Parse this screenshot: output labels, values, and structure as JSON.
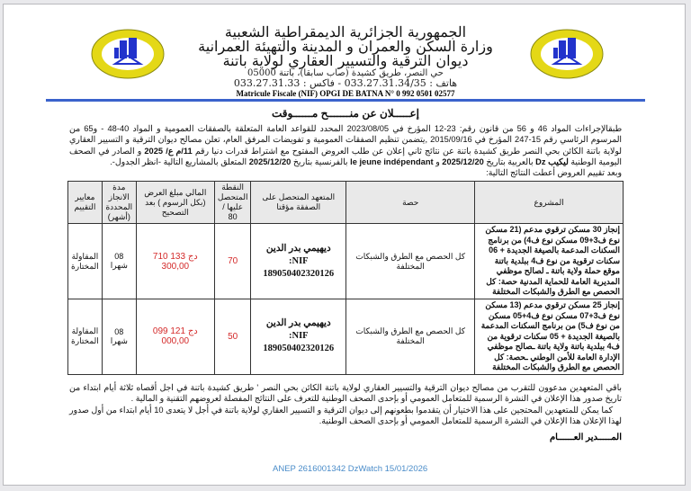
{
  "header": {
    "line1": "الجمهورية الجزائرية الديمقراطية الشعبية",
    "line2": "وزارة السكن والعمران و المدينة والتهيئة العمرانية",
    "line3": "ديوان الترقية والتسيير العقاري لولاية باتنة",
    "address": "حي النصر، طريق كشيدة (صاب سابقا)، باتنة 05000",
    "phone": "هاتف : 033.27.31.34/35 - فاكس : 033.27.31.33",
    "nif": "Matricule Fiscale (NIF) OPGI DE BATNA N° 0 992 0501 02577",
    "logo_text": "ديوان الترقية والتسيير العقاري باتنة OPGI"
  },
  "title": "إعـــــلان عن منـــــــح مــــــوقت",
  "intro": {
    "p1": "طبقالإجراءات المواد 46 و 56 من قانون رقم: 23-12 المؤرخ في 2023/08/05 المحدد للقواعد العامة المتعلقة بالصفقات العمومية و المواد 40-48 - و65 من المرسوم الرئاسي رقم 15-247 المؤرخ في 2015/09/16 ,يتضمن تنظيم الصفقات العمومية و تفويضات المرفق العام، تعلن مصالح ديوان الترقية و التسيير العقاري لولاية باتنة الكائن بحي النصر طريق كشيدة باتنة عن نتائج ثاني إعلان عن طلب العروض المفتوح مع اشتراط قدرات دنيا رقم",
    "ref": "11/م ع/ 2025",
    "p2": "و الصادر في الصحف اليومية الوطنية",
    "paper_ar": "ليكيب Dz",
    "p3": "بالعربية بتاريخ",
    "date1": "2025/12/20",
    "p4": "و",
    "paper_fr": "le jeune indépendant",
    "p5": "بالفرنسية بتاريخ",
    "date2": "2025/12/20",
    "p6": "المتعلق بالمشاريع التالية -انظر الجدول-.",
    "p7": "وبعد تقييم العروض أعطت النتائج التالية:"
  },
  "table": {
    "headers": [
      "المشروع",
      "حصة",
      "المتعهد المتحصل على الصفقة مؤقتا",
      "النقطة المتحصل عليها / 80",
      "المالي مبلغ العرض (بكل الرسوم ) بعد التصحيح",
      "مدة الانجاز المحددة (أشهر)",
      "معايير التقييم"
    ],
    "rows": [
      {
        "project": "إنجاز 30 مسكن ترقوي مدعم (21 مسكن نوع ف3+09 مسكن نوع ف4) من برنامج السكنات المدعمة بالصيغة الجديدة + 06 سكنات ترقوية من نوع ف4 ببلدية باتنة موقع حملة ولاية باتنة ـ لصالح موظفي المديرية العامة للحماية المدنية حصة: كل الحصص مع الطرق والشبكات المختلفة",
        "lot": "كل الحصص مع الطرق والشبكات المختلفة",
        "firm": "ديهيمي بدر الدين",
        "nif_label": "NIF:",
        "nif": "189050402320126",
        "score": "70",
        "amount": "133 710 300,00",
        "currency": "دج",
        "duration": "08 شهرا",
        "criteria": "المقاولة المختارة"
      },
      {
        "project": "إنجاز 25 مسكن ترقوي مدعم (13 مسكن نوع ف3+07 مسكن نوع ف4+05 مسكن من نوع ف5) من برنامج السكنات المدعمة بالصيغة الجديدة + 05 سكنات ترقوية من ف4 ببلدية باتنة ولاية باتنة ـصالح موظفي الإدارة العامة للأمن الوطني ـحصة: كل الحصص مع الطرق والشبكات المختلفة",
        "lot": "كل الحصص مع الطرق والشبكات المختلفة",
        "firm": "ديهيمي بدر الدين",
        "nif_label": "NIF:",
        "nif": "189050402320126",
        "score": "50",
        "amount": "121 099 000,00",
        "currency": "دج",
        "duration": "08 شهرا",
        "criteria": "المقاولة المختارة"
      }
    ]
  },
  "outro": {
    "p1": "باقي المتعهدين مدعوون للتقرب من مصالح ديوان الترقية والتسيير العقاري لولاية باتنة الكائن بحي النصر ' طريق كشيدة باتنة في اجل أقصاه ثلاثة أيام ابتداء من تاريخ صدور هذا الإعلان في النشرة الرسمية للمتعامل العمومي أو بإحدى الصحف الوطنية للتعرف على النتائج المفصلة لعروضهم التقنية و المالية .",
    "p2": "كما يمكن للمتعهدين المحتجين على هذا الاختيار أن يتقدموا بطعونهم إلى ديوان الترقية و التسيير العقاري لولاية باتنة في أجل لا يتعدى 10 أيام ابتداء من أول صدور لهذا الإعلان هذا الإعلان في النشرة الرسمية للمتعامل العمومي أو بإحدى الصحف الوطنية."
  },
  "signature": "المـــــدير العــــــام",
  "footer": "ANEP 2616001342 DzWatch 15/01/2026",
  "colors": {
    "accent_line": "#3a62cc",
    "amount_red": "#d42a2a",
    "footer_blue": "#4a8cc9",
    "logo_yellow": "#e4d816",
    "logo_blue": "#2233cc"
  }
}
